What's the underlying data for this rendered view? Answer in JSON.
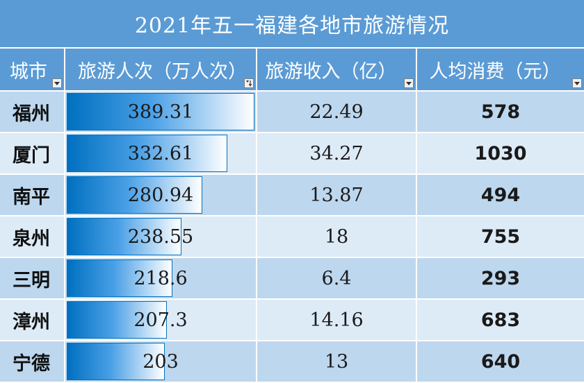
{
  "title": "2021年五一福建各地市旅游情况",
  "headers": [
    "城市",
    "旅游人次（万人次）",
    "旅游收入（亿）",
    "人均消费（元）"
  ],
  "rows": [
    {
      "city": "福州",
      "visitors": "389.31",
      "visitors_value": 389.31,
      "revenue": "22.49",
      "per_capita": "578"
    },
    {
      "city": "厦门",
      "visitors": "332.61",
      "visitors_value": 332.61,
      "revenue": "34.27",
      "per_capita": "1030"
    },
    {
      "city": "南平",
      "visitors": "280.94",
      "visitors_value": 280.94,
      "revenue": "13.87",
      "per_capita": "494"
    },
    {
      "city": "泉州",
      "visitors": "238.55",
      "visitors_value": 238.55,
      "revenue": "18",
      "per_capita": "755"
    },
    {
      "city": "三明",
      "visitors": "218.6",
      "visitors_value": 218.6,
      "revenue": "6.4",
      "per_capita": "293"
    },
    {
      "city": "漳州",
      "visitors": "207.3",
      "visitors_value": 207.3,
      "revenue": "14.16",
      "per_capita": "683"
    },
    {
      "city": "宁德",
      "visitors": "203",
      "visitors_value": 203,
      "revenue": "13",
      "per_capita": "640"
    }
  ],
  "colors": {
    "header": "#5b9bd5",
    "row_dark": "#bdd7ee",
    "row_light": "#ddebf7",
    "bar": "#0070c0"
  },
  "icons": {
    "filter": "dropdown-arrow-icon",
    "sort": "sort-descending-icon"
  }
}
